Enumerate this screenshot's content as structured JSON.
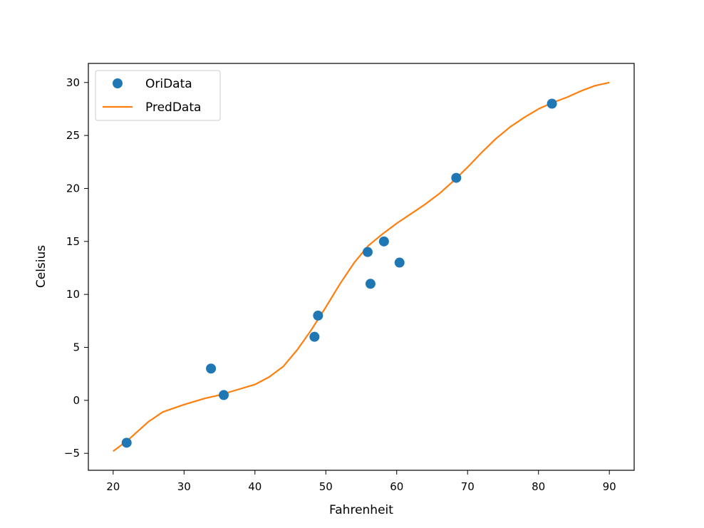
{
  "chart_data": {
    "type": "scatter",
    "xlabel": "Fahrenheit",
    "ylabel": "Celsius",
    "xlim": [
      16.5,
      93.5
    ],
    "ylim": [
      -6.6,
      31.8
    ],
    "x_ticks": [
      20,
      30,
      40,
      50,
      60,
      70,
      80,
      90
    ],
    "y_ticks": [
      -5,
      0,
      5,
      10,
      15,
      20,
      25,
      30
    ],
    "grid": false,
    "legend": {
      "position": "top-left",
      "entries": [
        "OriData",
        "PredData"
      ]
    },
    "colors": {
      "scatter": "#1f77b4",
      "line": "#ff7f0e"
    },
    "series": [
      {
        "name": "OriData",
        "type": "scatter",
        "points": [
          {
            "x": 21.9,
            "y": -4.0
          },
          {
            "x": 33.8,
            "y": 3.0
          },
          {
            "x": 35.6,
            "y": 0.5
          },
          {
            "x": 48.4,
            "y": 6.0
          },
          {
            "x": 48.9,
            "y": 8.0
          },
          {
            "x": 55.9,
            "y": 14.0
          },
          {
            "x": 56.3,
            "y": 11.0
          },
          {
            "x": 58.2,
            "y": 15.0
          },
          {
            "x": 60.4,
            "y": 13.0
          },
          {
            "x": 68.4,
            "y": 21.0
          },
          {
            "x": 81.9,
            "y": 28.0
          }
        ]
      },
      {
        "name": "PredData",
        "type": "line",
        "points": [
          {
            "x": 20,
            "y": -4.8
          },
          {
            "x": 22,
            "y": -3.8
          },
          {
            "x": 25,
            "y": -2.0
          },
          {
            "x": 27,
            "y": -1.1
          },
          {
            "x": 30,
            "y": -0.4
          },
          {
            "x": 33,
            "y": 0.2
          },
          {
            "x": 35,
            "y": 0.5
          },
          {
            "x": 37,
            "y": 0.9
          },
          {
            "x": 40,
            "y": 1.5
          },
          {
            "x": 42,
            "y": 2.2
          },
          {
            "x": 44,
            "y": 3.2
          },
          {
            "x": 46,
            "y": 4.8
          },
          {
            "x": 48,
            "y": 6.7
          },
          {
            "x": 50,
            "y": 8.8
          },
          {
            "x": 52,
            "y": 11.0
          },
          {
            "x": 54,
            "y": 13.0
          },
          {
            "x": 56,
            "y": 14.6
          },
          {
            "x": 58,
            "y": 15.7
          },
          {
            "x": 60,
            "y": 16.7
          },
          {
            "x": 62,
            "y": 17.6
          },
          {
            "x": 64,
            "y": 18.5
          },
          {
            "x": 66,
            "y": 19.5
          },
          {
            "x": 68,
            "y": 20.7
          },
          {
            "x": 70,
            "y": 22.0
          },
          {
            "x": 72,
            "y": 23.4
          },
          {
            "x": 74,
            "y": 24.7
          },
          {
            "x": 76,
            "y": 25.8
          },
          {
            "x": 78,
            "y": 26.7
          },
          {
            "x": 80,
            "y": 27.5
          },
          {
            "x": 82,
            "y": 28.1
          },
          {
            "x": 84,
            "y": 28.6
          },
          {
            "x": 86,
            "y": 29.2
          },
          {
            "x": 88,
            "y": 29.7
          },
          {
            "x": 90,
            "y": 30.0
          }
        ]
      }
    ]
  }
}
